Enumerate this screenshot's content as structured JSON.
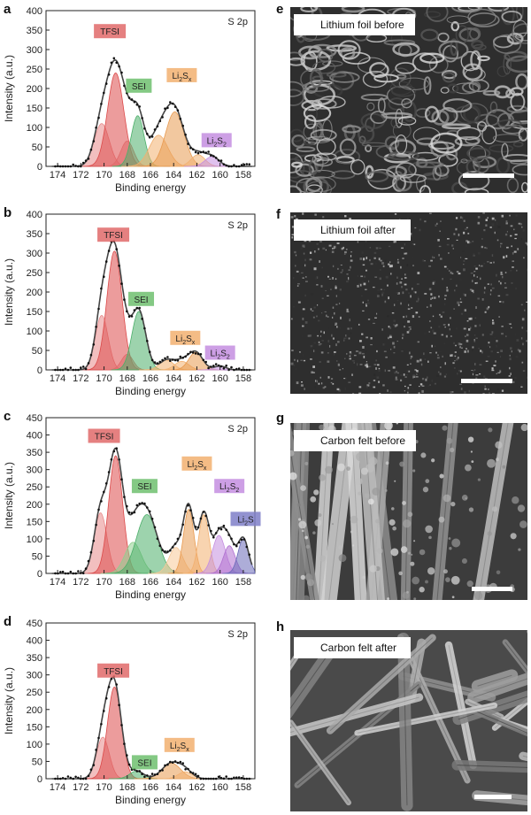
{
  "panel_letters": [
    "a",
    "b",
    "c",
    "d",
    "e",
    "f",
    "g",
    "h"
  ],
  "chart_data": [
    {
      "panel": "a",
      "type": "area",
      "corner_label": "S 2p",
      "xlabel": "Binding energy",
      "ylabel": "Intensity (a.u.)",
      "xlim": [
        175,
        157
      ],
      "ylim": [
        0,
        400
      ],
      "xticks": [
        174,
        172,
        170,
        168,
        166,
        164,
        162,
        160,
        158
      ],
      "yticks": [
        0,
        50,
        100,
        150,
        200,
        250,
        300,
        350,
        400
      ],
      "annotations": [
        {
          "text": "TFSI",
          "x": 169.5,
          "y": 345,
          "color": "#e06a6a"
        },
        {
          "text": "SEI",
          "x": 167.0,
          "y": 205,
          "color": "#6fbf6f"
        },
        {
          "text": "Li2Sx",
          "x": 163.3,
          "y": 232,
          "color": "#f2b070"
        },
        {
          "text": "Li2S2",
          "x": 160.3,
          "y": 65,
          "color": "#c48ee0"
        }
      ],
      "peaks": [
        {
          "center": 170.2,
          "height": 110,
          "sigma": 0.65,
          "color": "#e88b8b"
        },
        {
          "center": 169.0,
          "height": 240,
          "sigma": 0.7,
          "color": "#dc4a4a"
        },
        {
          "center": 168.0,
          "height": 65,
          "sigma": 0.55,
          "color": "#e06a6a"
        },
        {
          "center": 167.1,
          "height": 130,
          "sigma": 0.55,
          "color": "#4caf6a"
        },
        {
          "center": 165.3,
          "height": 80,
          "sigma": 0.8,
          "color": "#f2b070"
        },
        {
          "center": 163.9,
          "height": 140,
          "sigma": 0.8,
          "color": "#e89a50"
        },
        {
          "center": 161.9,
          "height": 30,
          "sigma": 0.6,
          "color": "#f2b070"
        },
        {
          "center": 160.7,
          "height": 25,
          "sigma": 0.6,
          "color": "#c48ee0"
        }
      ]
    },
    {
      "panel": "b",
      "type": "area",
      "corner_label": "S 2p",
      "xlabel": "Binding energy",
      "ylabel": "Intensity (a.u.)",
      "xlim": [
        175,
        157
      ],
      "ylim": [
        0,
        400
      ],
      "xticks": [
        174,
        172,
        170,
        168,
        166,
        164,
        162,
        160,
        158
      ],
      "yticks": [
        0,
        50,
        100,
        150,
        200,
        250,
        300,
        350,
        400
      ],
      "annotations": [
        {
          "text": "TFSI",
          "x": 169.2,
          "y": 345,
          "color": "#e06a6a"
        },
        {
          "text": "SEI",
          "x": 166.8,
          "y": 180,
          "color": "#6fbf6f"
        },
        {
          "text": "Li2Sx",
          "x": 163.0,
          "y": 80,
          "color": "#f2b070"
        },
        {
          "text": "Li2S2",
          "x": 160.0,
          "y": 42,
          "color": "#c48ee0"
        }
      ],
      "peaks": [
        {
          "center": 170.2,
          "height": 140,
          "sigma": 0.55,
          "color": "#e88b8b"
        },
        {
          "center": 169.1,
          "height": 305,
          "sigma": 0.65,
          "color": "#dc4a4a"
        },
        {
          "center": 168.0,
          "height": 40,
          "sigma": 0.5,
          "color": "#e06a6a"
        },
        {
          "center": 167.0,
          "height": 150,
          "sigma": 0.6,
          "color": "#4caf6a"
        },
        {
          "center": 164.6,
          "height": 25,
          "sigma": 0.6,
          "color": "#f2b070"
        },
        {
          "center": 163.3,
          "height": 22,
          "sigma": 0.6,
          "color": "#f2b070"
        },
        {
          "center": 162.1,
          "height": 45,
          "sigma": 0.6,
          "color": "#e89a50"
        },
        {
          "center": 160.0,
          "height": 10,
          "sigma": 0.5,
          "color": "#c48ee0"
        }
      ]
    },
    {
      "panel": "c",
      "type": "area",
      "corner_label": "S 2p",
      "xlabel": "Binding energy",
      "ylabel": "Intensity (a.u.)",
      "xlim": [
        175,
        157
      ],
      "ylim": [
        0,
        450
      ],
      "xticks": [
        174,
        172,
        170,
        168,
        166,
        164,
        162,
        160,
        158
      ],
      "yticks": [
        0,
        50,
        100,
        150,
        200,
        250,
        300,
        350,
        400,
        450
      ],
      "annotations": [
        {
          "text": "TFSI",
          "x": 170.0,
          "y": 395,
          "color": "#e06a6a"
        },
        {
          "text": "SEI",
          "x": 166.5,
          "y": 250,
          "color": "#6fbf6f"
        },
        {
          "text": "Li2Sx",
          "x": 162.0,
          "y": 315,
          "color": "#f2b070"
        },
        {
          "text": "Li2S2",
          "x": 159.2,
          "y": 250,
          "color": "#c48ee0"
        },
        {
          "text": "Li2S",
          "x": 157.8,
          "y": 155,
          "color": "#7f7fc8"
        }
      ],
      "peaks": [
        {
          "center": 170.3,
          "height": 175,
          "sigma": 0.55,
          "color": "#e88b8b"
        },
        {
          "center": 169.0,
          "height": 340,
          "sigma": 0.6,
          "color": "#dc4a4a"
        },
        {
          "center": 167.5,
          "height": 90,
          "sigma": 0.7,
          "color": "#8fd08f"
        },
        {
          "center": 166.3,
          "height": 170,
          "sigma": 0.9,
          "color": "#4caf6a"
        },
        {
          "center": 163.8,
          "height": 75,
          "sigma": 0.6,
          "color": "#f7c898"
        },
        {
          "center": 162.7,
          "height": 185,
          "sigma": 0.45,
          "color": "#e89a50"
        },
        {
          "center": 161.4,
          "height": 170,
          "sigma": 0.45,
          "color": "#f2b070"
        },
        {
          "center": 160.1,
          "height": 110,
          "sigma": 0.55,
          "color": "#c48ee0"
        },
        {
          "center": 159.2,
          "height": 80,
          "sigma": 0.5,
          "color": "#b070d0"
        },
        {
          "center": 158.0,
          "height": 100,
          "sigma": 0.45,
          "color": "#6a6ab8"
        }
      ]
    },
    {
      "panel": "d",
      "type": "area",
      "corner_label": "S 2p",
      "xlabel": "Binding energy",
      "ylabel": "Intensity (a.u.)",
      "xlim": [
        175,
        157
      ],
      "ylim": [
        0,
        450
      ],
      "xticks": [
        174,
        172,
        170,
        168,
        166,
        164,
        162,
        160,
        158
      ],
      "yticks": [
        0,
        50,
        100,
        150,
        200,
        250,
        300,
        350,
        400,
        450
      ],
      "annotations": [
        {
          "text": "TFSI",
          "x": 169.2,
          "y": 310,
          "color": "#e06a6a"
        },
        {
          "text": "SEI",
          "x": 166.5,
          "y": 45,
          "color": "#6fbf6f"
        },
        {
          "text": "Li2Sx",
          "x": 163.5,
          "y": 95,
          "color": "#f2b070"
        }
      ],
      "peaks": [
        {
          "center": 170.1,
          "height": 120,
          "sigma": 0.55,
          "color": "#e88b8b"
        },
        {
          "center": 169.1,
          "height": 265,
          "sigma": 0.6,
          "color": "#dc4a4a"
        },
        {
          "center": 167.2,
          "height": 22,
          "sigma": 0.6,
          "color": "#4caf6a"
        },
        {
          "center": 164.2,
          "height": 45,
          "sigma": 0.8,
          "color": "#e89a50"
        },
        {
          "center": 163.0,
          "height": 20,
          "sigma": 0.6,
          "color": "#f2b070"
        }
      ]
    }
  ],
  "sem_images": [
    {
      "panel": "e",
      "label": "Lithium foil before",
      "texture": "rough"
    },
    {
      "panel": "f",
      "label": "Lithium foil after",
      "texture": "speckle"
    },
    {
      "panel": "g",
      "label": "Carbon felt before",
      "texture": "fibers-coated"
    },
    {
      "panel": "h",
      "label": "Carbon felt after",
      "texture": "fibers-smooth"
    }
  ]
}
